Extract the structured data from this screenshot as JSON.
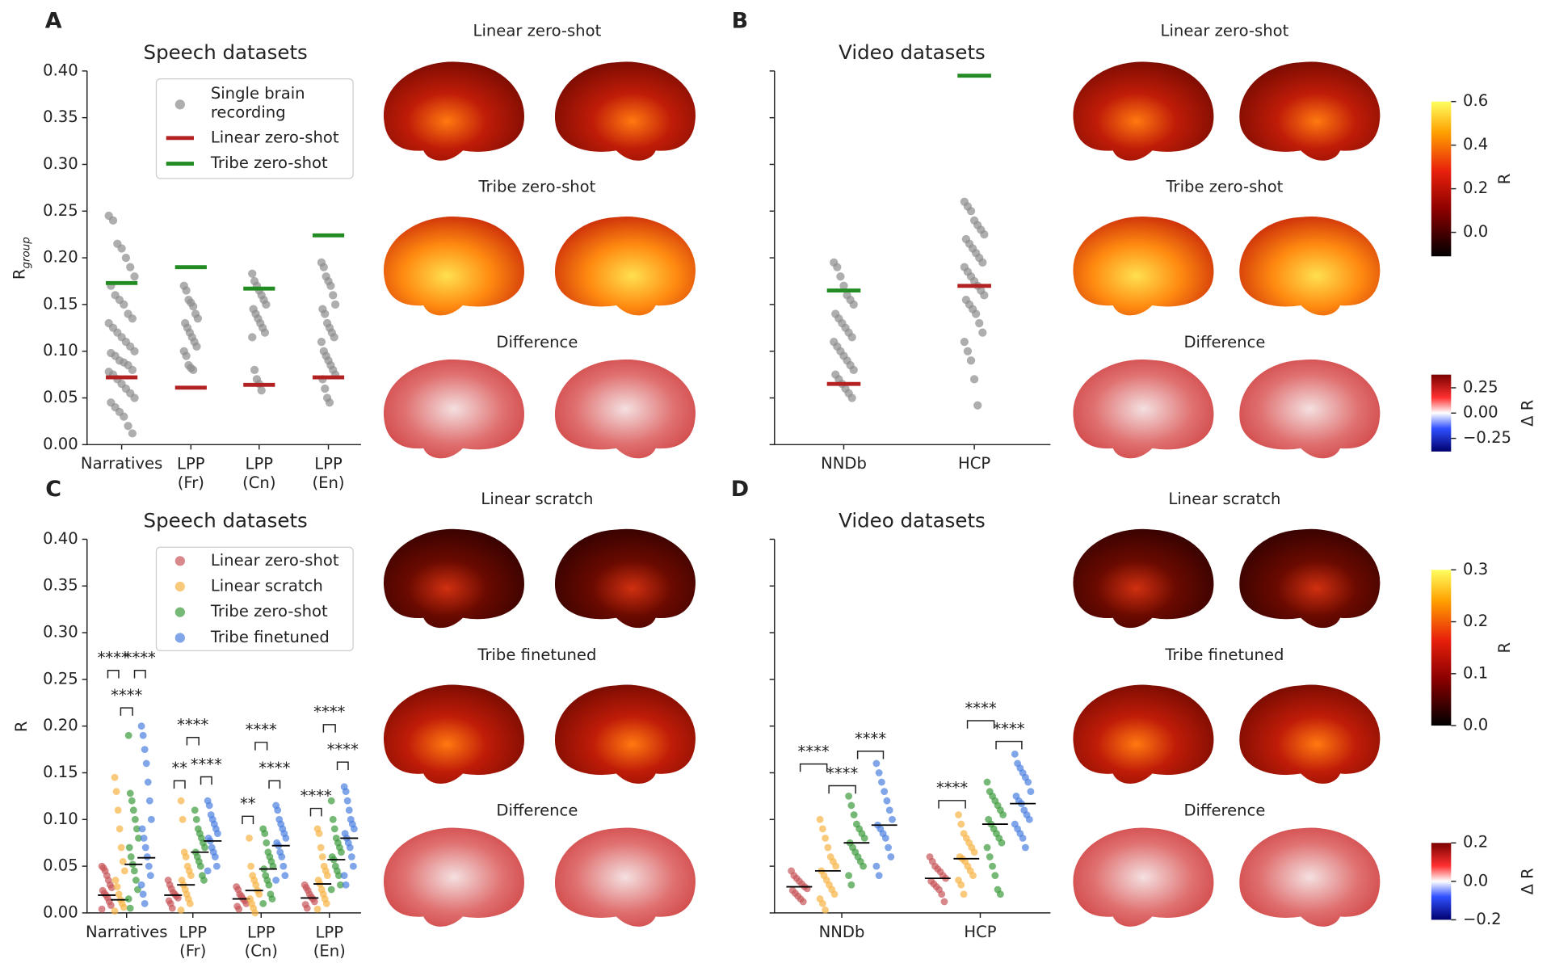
{
  "chart_data": [
    {
      "type": "strip",
      "panel_label": "A",
      "title": "Speech datasets",
      "ylabel": "R",
      "ylabel_subscript": "group",
      "categories": [
        "Narratives",
        "LPP\n(Fr)",
        "LPP\n(Cn)",
        "LPP\n(En)"
      ],
      "ylim": [
        0,
        0.4
      ],
      "yticks": [
        {
          "value": 0,
          "label": "0.00"
        },
        0.05,
        {
          "value": 0.1,
          "label": "0.10"
        },
        0.15,
        {
          "value": 0.2,
          "label": "0.20"
        },
        0.25,
        {
          "value": 0.3,
          "label": "0.30"
        },
        0.35,
        {
          "value": 0.4,
          "label": "0.40"
        }
      ],
      "series": [
        {
          "name": "Single brain\nrecording",
          "color": "#8c8c8c",
          "marker": "point",
          "values": [
            [
              0.245,
              0.24,
              0.215,
              0.21,
              0.2,
              0.19,
              0.18,
              0.17,
              0.16,
              0.155,
              0.15,
              0.14,
              0.135,
              0.13,
              0.125,
              0.12,
              0.115,
              0.11,
              0.105,
              0.1,
              0.098,
              0.095,
              0.09,
              0.088,
              0.085,
              0.08,
              0.078,
              0.075,
              0.07,
              0.065,
              0.06,
              0.055,
              0.05,
              0.045,
              0.04,
              0.035,
              0.03,
              0.02,
              0.012
            ],
            [
              0.17,
              0.165,
              0.155,
              0.152,
              0.148,
              0.14,
              0.135,
              0.13,
              0.125,
              0.12,
              0.115,
              0.11,
              0.105,
              0.1,
              0.095,
              0.085,
              0.082,
              0.08
            ],
            [
              0.183,
              0.175,
              0.17,
              0.165,
              0.16,
              0.155,
              0.15,
              0.145,
              0.14,
              0.135,
              0.13,
              0.125,
              0.12,
              0.115,
              0.08,
              0.07,
              0.065,
              0.058
            ],
            [
              0.195,
              0.19,
              0.18,
              0.175,
              0.17,
              0.16,
              0.15,
              0.145,
              0.14,
              0.13,
              0.125,
              0.12,
              0.115,
              0.11,
              0.1,
              0.095,
              0.09,
              0.085,
              0.08,
              0.075,
              0.07,
              0.06,
              0.05,
              0.045
            ]
          ]
        },
        {
          "name": "Linear zero-shot",
          "color": "#b22222",
          "marker": "line",
          "values": [
            0.072,
            0.061,
            0.064,
            0.072
          ]
        },
        {
          "name": "Tribe zero-shot",
          "color": "#228b22",
          "marker": "line",
          "values": [
            0.173,
            0.19,
            0.167,
            0.224
          ]
        }
      ],
      "maps": [
        "Linear zero-shot",
        "Tribe zero-shot",
        "Difference"
      ]
    },
    {
      "type": "strip",
      "panel_label": "B",
      "title": "Video datasets",
      "categories": [
        "NNDb",
        "HCP"
      ],
      "ylim": [
        0,
        0.4
      ],
      "yticks": [
        0,
        0.05,
        0.1,
        0.15,
        0.2,
        0.25,
        0.3,
        0.35,
        0.4
      ],
      "series": [
        {
          "color": "#8c8c8c",
          "marker": "point",
          "values": [
            [
              0.195,
              0.19,
              0.18,
              0.17,
              0.16,
              0.155,
              0.15,
              0.14,
              0.135,
              0.13,
              0.125,
              0.12,
              0.115,
              0.11,
              0.105,
              0.1,
              0.095,
              0.09,
              0.085,
              0.08,
              0.075,
              0.07,
              0.065,
              0.06,
              0.055,
              0.05
            ],
            [
              0.26,
              0.255,
              0.25,
              0.24,
              0.235,
              0.23,
              0.225,
              0.22,
              0.215,
              0.21,
              0.205,
              0.2,
              0.195,
              0.19,
              0.185,
              0.18,
              0.175,
              0.17,
              0.165,
              0.16,
              0.155,
              0.15,
              0.145,
              0.14,
              0.13,
              0.12,
              0.11,
              0.1,
              0.09,
              0.07,
              0.042
            ]
          ]
        },
        {
          "color": "#b22222",
          "marker": "line",
          "values": [
            0.065,
            0.17
          ]
        },
        {
          "color": "#228b22",
          "marker": "line",
          "values": [
            0.165,
            0.395
          ]
        }
      ],
      "maps": [
        "Linear zero-shot",
        "Tribe zero-shot",
        "Difference"
      ],
      "colorbars": [
        {
          "label": "R",
          "lim": [
            -0.11,
            0.6
          ],
          "ticks": [
            {
              "value": 0,
              "label": "0.0"
            },
            0.2,
            0.4,
            0.6
          ]
        },
        {
          "label": "Δ R",
          "lim": [
            -0.38,
            0.38
          ],
          "ticks": [
            0.25,
            {
              "value": 0,
              "label": "0.00"
            },
            {
              "value": -0.25,
              "label": "−0.25"
            }
          ]
        }
      ]
    },
    {
      "type": "strip",
      "panel_label": "C",
      "title": "Speech datasets",
      "ylabel": "R",
      "categories": [
        "Narratives",
        "LPP\n(Fr)",
        "LPP\n(Cn)",
        "LPP\n(En)"
      ],
      "ylim": [
        0,
        0.4
      ],
      "yticks": [
        {
          "value": 0,
          "label": "0.00"
        },
        0.05,
        {
          "value": 0.1,
          "label": "0.10"
        },
        0.15,
        {
          "value": 0.2,
          "label": "0.20"
        },
        0.25,
        {
          "value": 0.3,
          "label": "0.30"
        },
        0.35,
        {
          "value": 0.4,
          "label": "0.40"
        }
      ],
      "median_color": "#000000",
      "series": [
        {
          "name": "Linear zero-shot",
          "color": "#c8565a",
          "medians": [
            0.019,
            0.019,
            0.015,
            0.016
          ],
          "values": [
            [
              0.05,
              0.048,
              0.045,
              0.04,
              0.035,
              0.03,
              0.027,
              0.024,
              0.021,
              0.019,
              0.016,
              0.012,
              0.008,
              0.004
            ],
            [
              0.035,
              0.03,
              0.026,
              0.022,
              0.02,
              0.018,
              0.016,
              0.013,
              0.01,
              0.005
            ],
            [
              0.028,
              0.025,
              0.02,
              0.018,
              0.015,
              0.013,
              0.01,
              0.007,
              0.004
            ],
            [
              0.03,
              0.027,
              0.024,
              0.02,
              0.017,
              0.015,
              0.012,
              0.009,
              0.005
            ]
          ]
        },
        {
          "name": "Linear scratch",
          "color": "#f8b445",
          "medians": [
            0.014,
            0.03,
            0.024,
            0.031
          ],
          "values": [
            [
              0.145,
              0.13,
              0.11,
              0.09,
              0.07,
              0.055,
              0.045,
              0.035,
              0.028,
              0.02,
              0.014,
              0.01,
              0.006,
              0.002
            ],
            [
              0.12,
              0.1,
              0.065,
              0.06,
              0.05,
              0.045,
              0.04,
              0.035,
              0.03,
              0.025,
              0.02,
              0.015,
              0.01,
              0.003
            ],
            [
              0.08,
              0.05,
              0.04,
              0.035,
              0.03,
              0.024,
              0.02,
              0.015,
              0.01,
              0.005,
              0
            ],
            [
              0.09,
              0.085,
              0.07,
              0.06,
              0.05,
              0.045,
              0.04,
              0.035,
              0.031,
              0.025,
              0.02,
              0.015,
              0.01,
              0.004
            ]
          ]
        },
        {
          "name": "Tribe zero-shot",
          "color": "#3c9a3c",
          "medians": [
            0.052,
            0.065,
            0.047,
            0.057
          ],
          "values": [
            [
              0.19,
              0.128,
              0.12,
              0.11,
              0.1,
              0.09,
              0.08,
              0.07,
              0.06,
              0.052,
              0.045,
              0.035,
              0.025,
              0.015,
              0.005
            ],
            [
              0.11,
              0.1,
              0.09,
              0.085,
              0.08,
              0.075,
              0.07,
              0.065,
              0.06,
              0.055,
              0.05,
              0.04,
              0.035
            ],
            [
              0.09,
              0.085,
              0.075,
              0.065,
              0.06,
              0.055,
              0.05,
              0.047,
              0.04,
              0.035,
              0.03,
              0.02,
              0.015,
              0.01
            ],
            [
              0.12,
              0.1,
              0.09,
              0.08,
              0.075,
              0.07,
              0.065,
              0.06,
              0.057,
              0.05,
              0.045,
              0.04,
              0.03,
              0.025
            ]
          ]
        },
        {
          "name": "Tribe finetuned",
          "color": "#4a7fe0",
          "medians": [
            0.059,
            0.077,
            0.072,
            0.08
          ],
          "values": [
            [
              0.2,
              0.19,
              0.175,
              0.16,
              0.14,
              0.12,
              0.1,
              0.09,
              0.08,
              0.07,
              0.06,
              0.05,
              0.04,
              0.03,
              0.02,
              0.01
            ],
            [
              0.12,
              0.115,
              0.105,
              0.1,
              0.095,
              0.09,
              0.085,
              0.08,
              0.077,
              0.07,
              0.065,
              0.06,
              0.05,
              0.045
            ],
            [
              0.115,
              0.11,
              0.1,
              0.095,
              0.09,
              0.085,
              0.08,
              0.075,
              0.072,
              0.065,
              0.06,
              0.05,
              0.04,
              0.035
            ],
            [
              0.135,
              0.13,
              0.12,
              0.11,
              0.1,
              0.095,
              0.09,
              0.085,
              0.08,
              0.075,
              0.07,
              0.06,
              0.05,
              0.04,
              0.03
            ]
          ]
        }
      ],
      "significance": [
        "****",
        "****",
        "****",
        "**",
        "****",
        "****",
        "**",
        "****",
        "****",
        "****",
        "****",
        "****"
      ],
      "maps": [
        "Linear scratch",
        "Tribe finetuned",
        "Difference"
      ]
    },
    {
      "type": "strip",
      "panel_label": "D",
      "title": "Video datasets",
      "categories": [
        "NNDb",
        "HCP"
      ],
      "ylim": [
        0,
        0.4
      ],
      "yticks": [
        0,
        0.05,
        0.1,
        0.15,
        0.2,
        0.25,
        0.3,
        0.35,
        0.4
      ],
      "median_color": "#000000",
      "series": [
        {
          "color": "#c8565a",
          "medians": [
            0.028,
            0.037
          ],
          "values": [
            [
              0.045,
              0.04,
              0.037,
              0.034,
              0.031,
              0.028,
              0.026,
              0.024,
              0.021,
              0.018,
              0.015,
              0.012
            ],
            [
              0.06,
              0.055,
              0.05,
              0.047,
              0.044,
              0.04,
              0.037,
              0.034,
              0.031,
              0.028,
              0.025,
              0.02,
              0.012
            ]
          ]
        },
        {
          "color": "#f8b445",
          "medians": [
            0.045,
            0.058
          ],
          "values": [
            [
              0.1,
              0.09,
              0.08,
              0.07,
              0.06,
              0.055,
              0.05,
              0.045,
              0.04,
              0.035,
              0.03,
              0.025,
              0.02,
              0.015,
              0.01,
              0.003
            ],
            [
              0.105,
              0.095,
              0.085,
              0.08,
              0.075,
              0.07,
              0.065,
              0.06,
              0.058,
              0.055,
              0.05,
              0.045,
              0.04,
              0.035,
              0.03,
              0.02
            ]
          ]
        },
        {
          "color": "#3c9a3c",
          "medians": [
            0.075,
            0.095
          ],
          "values": [
            [
              0.125,
              0.115,
              0.105,
              0.095,
              0.09,
              0.085,
              0.08,
              0.075,
              0.07,
              0.065,
              0.06,
              0.055,
              0.05,
              0.04,
              0.03
            ],
            [
              0.14,
              0.13,
              0.125,
              0.12,
              0.115,
              0.11,
              0.105,
              0.1,
              0.095,
              0.09,
              0.085,
              0.08,
              0.075,
              0.07,
              0.06,
              0.05,
              0.04,
              0.025,
              0.02
            ]
          ]
        },
        {
          "color": "#4a7fe0",
          "medians": [
            0.094,
            0.117
          ],
          "values": [
            [
              0.16,
              0.15,
              0.14,
              0.13,
              0.12,
              0.11,
              0.1,
              0.094,
              0.09,
              0.085,
              0.08,
              0.07,
              0.06,
              0.05,
              0.04
            ],
            [
              0.17,
              0.16,
              0.155,
              0.15,
              0.145,
              0.14,
              0.13,
              0.125,
              0.12,
              0.117,
              0.11,
              0.105,
              0.1,
              0.095,
              0.09,
              0.085,
              0.08,
              0.07
            ]
          ]
        }
      ],
      "significance": [
        "****",
        "****",
        "****",
        "****",
        "****",
        "****"
      ],
      "maps": [
        "Linear scratch",
        "Tribe finetuned",
        "Difference"
      ],
      "colorbars": [
        {
          "label": "R",
          "lim": [
            0,
            0.3
          ],
          "ticks": [
            {
              "value": 0,
              "label": "0.0"
            },
            0.1,
            0.2,
            0.3
          ]
        },
        {
          "label": "Δ R",
          "lim": [
            -0.2,
            0.2
          ],
          "ticks": [
            0.2,
            {
              "value": 0,
              "label": "0.0"
            },
            {
              "value": -0.2,
              "label": "−0.2"
            }
          ]
        }
      ]
    }
  ]
}
